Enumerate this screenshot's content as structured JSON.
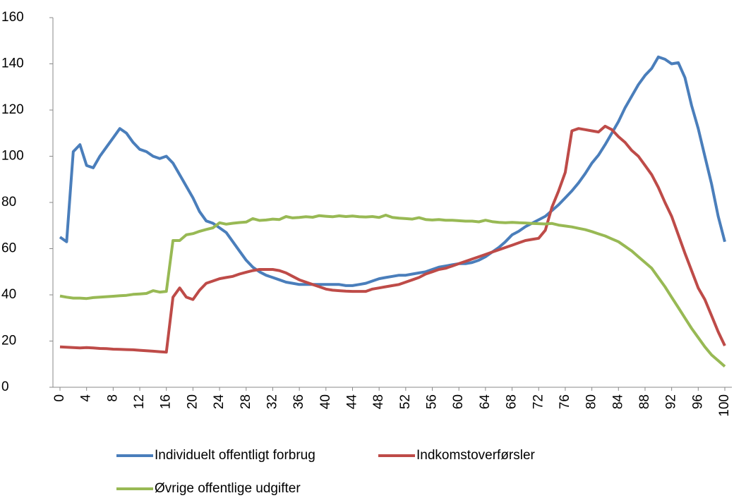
{
  "chart_data": {
    "type": "line",
    "x": [
      0,
      1,
      2,
      3,
      4,
      5,
      6,
      7,
      8,
      9,
      10,
      11,
      12,
      13,
      14,
      15,
      16,
      17,
      18,
      19,
      20,
      21,
      22,
      23,
      24,
      25,
      26,
      27,
      28,
      29,
      30,
      31,
      32,
      33,
      34,
      35,
      36,
      37,
      38,
      39,
      40,
      41,
      42,
      43,
      44,
      45,
      46,
      47,
      48,
      49,
      50,
      51,
      52,
      53,
      54,
      55,
      56,
      57,
      58,
      59,
      60,
      61,
      62,
      63,
      64,
      65,
      66,
      67,
      68,
      69,
      70,
      71,
      72,
      73,
      74,
      75,
      76,
      77,
      78,
      79,
      80,
      81,
      82,
      83,
      84,
      85,
      86,
      87,
      88,
      89,
      90,
      91,
      92,
      93,
      94,
      95,
      96,
      97,
      98,
      99,
      100
    ],
    "xlim": [
      0,
      100
    ],
    "xticks": [
      0,
      4,
      8,
      12,
      16,
      20,
      24,
      28,
      32,
      36,
      40,
      44,
      48,
      52,
      56,
      60,
      64,
      68,
      72,
      76,
      80,
      84,
      88,
      92,
      96,
      100
    ],
    "ylim": [
      0,
      160
    ],
    "yticks": [
      0,
      20,
      40,
      60,
      80,
      100,
      120,
      140,
      160
    ],
    "legend": "bottom",
    "series": [
      {
        "name": "Individuelt offentligt forbrug",
        "color": "#4a7ebb",
        "values": [
          65,
          63,
          102,
          105,
          96,
          95,
          100,
          104,
          108,
          112,
          110,
          106,
          103,
          102,
          100,
          99,
          100,
          97,
          92,
          87,
          82,
          76,
          72,
          71,
          69,
          67,
          63,
          59,
          55,
          52,
          50,
          48.5,
          47.5,
          46.5,
          45.5,
          45,
          44.5,
          44.5,
          44.5,
          44.5,
          44.5,
          44.5,
          44.5,
          44,
          44,
          44.5,
          45,
          46,
          47,
          47.5,
          48,
          48.5,
          48.5,
          49,
          49.5,
          50,
          51,
          52,
          52.5,
          53,
          53.5,
          53.5,
          54,
          55,
          56.5,
          58.5,
          60.5,
          63,
          66,
          67.5,
          69.5,
          71,
          72.5,
          74,
          76.5,
          79,
          82,
          85,
          88.5,
          92.5,
          97,
          100.5,
          105,
          110,
          115,
          121,
          126,
          131,
          135,
          138,
          143,
          142,
          140,
          140.5,
          134,
          122,
          112,
          100,
          88,
          74,
          63
        ]
      },
      {
        "name": "Indkomstoverførsler",
        "color": "#be4b48",
        "values": [
          17.5,
          17.3,
          17.2,
          17,
          17.2,
          17,
          16.8,
          16.7,
          16.5,
          16.4,
          16.3,
          16.2,
          16,
          15.8,
          15.6,
          15.4,
          15.2,
          39,
          43,
          39,
          38,
          42,
          45,
          46,
          47,
          47.5,
          48,
          49,
          49.8,
          50.5,
          51,
          51,
          51,
          50.5,
          49.5,
          48,
          46.5,
          45.5,
          44.5,
          43.5,
          42.5,
          42,
          41.8,
          41.6,
          41.5,
          41.5,
          41.5,
          42.5,
          43,
          43.5,
          44,
          44.5,
          45.5,
          46.5,
          47.5,
          49,
          50,
          51,
          51.5,
          52.5,
          53.5,
          54.5,
          55.5,
          56.5,
          57.5,
          58.5,
          59.5,
          60.5,
          61.5,
          62.5,
          63.5,
          64,
          64.5,
          68,
          78,
          85,
          93,
          111,
          112,
          111.5,
          111,
          110.5,
          113,
          111.5,
          108.5,
          106,
          102.5,
          100,
          96,
          92,
          86.5,
          80,
          74,
          66,
          58,
          50.5,
          43,
          38,
          31,
          24,
          18
        ]
      },
      {
        "name": "Øvrige offentlige udgifter",
        "color": "#98b954",
        "values": [
          39.5,
          39,
          38.6,
          38.6,
          38.4,
          38.8,
          39,
          39.2,
          39.4,
          39.6,
          39.8,
          40.2,
          40.4,
          40.6,
          41.8,
          41.2,
          41.5,
          63.5,
          63.5,
          66,
          66.5,
          67.5,
          68.3,
          69,
          71.2,
          70.6,
          71,
          71.3,
          71.5,
          73,
          72.2,
          72.4,
          72.8,
          72.6,
          73.9,
          73.3,
          73.5,
          73.8,
          73.6,
          74.3,
          74,
          73.8,
          74.2,
          73.9,
          74.1,
          73.8,
          73.7,
          73.9,
          73.5,
          74.5,
          73.5,
          73.2,
          73,
          72.8,
          73.4,
          72.6,
          72.4,
          72.6,
          72.3,
          72.3,
          72.1,
          71.9,
          71.9,
          71.6,
          72.3,
          71.7,
          71.4,
          71.2,
          71.4,
          71.2,
          71.1,
          70.9,
          70.8,
          70.7,
          70.9,
          70.2,
          69.8,
          69.4,
          68.8,
          68.2,
          67.4,
          66.4,
          65.5,
          64.2,
          63,
          61,
          59,
          56.5,
          54,
          51.5,
          47.5,
          43.5,
          39,
          34.5,
          30,
          25.5,
          21.5,
          17.5,
          14,
          11.5,
          9
        ]
      }
    ]
  }
}
